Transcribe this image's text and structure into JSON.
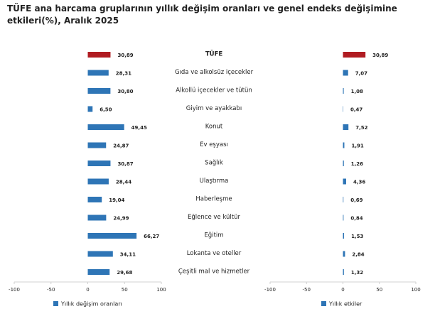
{
  "chart_data": {
    "type": "bar",
    "orientation": "horizontal",
    "title": "TÜFE ana harcama gruplarının yıllık değişim oranları ve genel endeks değişimine etkileri(%), Aralık 2025",
    "categories": [
      "TÜFE",
      "Gıda ve alkolsüz içecekler",
      "Alkollü içecekler ve tütün",
      "Giyim ve ayakkabı",
      "Konut",
      "Ev eşyası",
      "Sağlık",
      "Ulaştırma",
      "Haberleşme",
      "Eğlence ve kültür",
      "Eğitim",
      "Lokanta ve oteller",
      "Çeşitli mal ve hizmetler"
    ],
    "series": [
      {
        "name": "Yıllık değişim oranları",
        "color": "#2e75b6",
        "colors": [
          "#b01c22",
          "#2e75b6",
          "#2e75b6",
          "#2e75b6",
          "#2e75b6",
          "#2e75b6",
          "#2e75b6",
          "#2e75b6",
          "#2e75b6",
          "#2e75b6",
          "#2e75b6",
          "#2e75b6",
          "#2e75b6"
        ],
        "values": [
          30.89,
          28.31,
          30.8,
          6.5,
          49.45,
          24.87,
          30.87,
          28.44,
          19.04,
          24.99,
          66.27,
          34.11,
          29.68
        ],
        "value_labels": [
          "30,89",
          "28,31",
          "30,80",
          "6,50",
          "49,45",
          "24,87",
          "30,87",
          "28,44",
          "19,04",
          "24,99",
          "66,27",
          "34,11",
          "29,68"
        ]
      },
      {
        "name": "Yıllık etkiler",
        "color": "#2e75b6",
        "colors": [
          "#b01c22",
          "#2e75b6",
          "#2e75b6",
          "#2e75b6",
          "#2e75b6",
          "#2e75b6",
          "#2e75b6",
          "#2e75b6",
          "#2e75b6",
          "#2e75b6",
          "#2e75b6",
          "#2e75b6",
          "#2e75b6"
        ],
        "values": [
          30.89,
          7.07,
          1.08,
          0.47,
          7.52,
          1.91,
          1.26,
          4.36,
          0.69,
          0.84,
          1.53,
          2.84,
          1.32
        ],
        "value_labels": [
          "30,89",
          "7,07",
          "1,08",
          "0,47",
          "7,52",
          "1,91",
          "1,26",
          "4,36",
          "0,69",
          "0,84",
          "1,53",
          "2,84",
          "1,32"
        ]
      }
    ],
    "xlim": [
      -100,
      100
    ],
    "xticks": [
      -100,
      -50,
      0,
      50,
      100
    ]
  }
}
